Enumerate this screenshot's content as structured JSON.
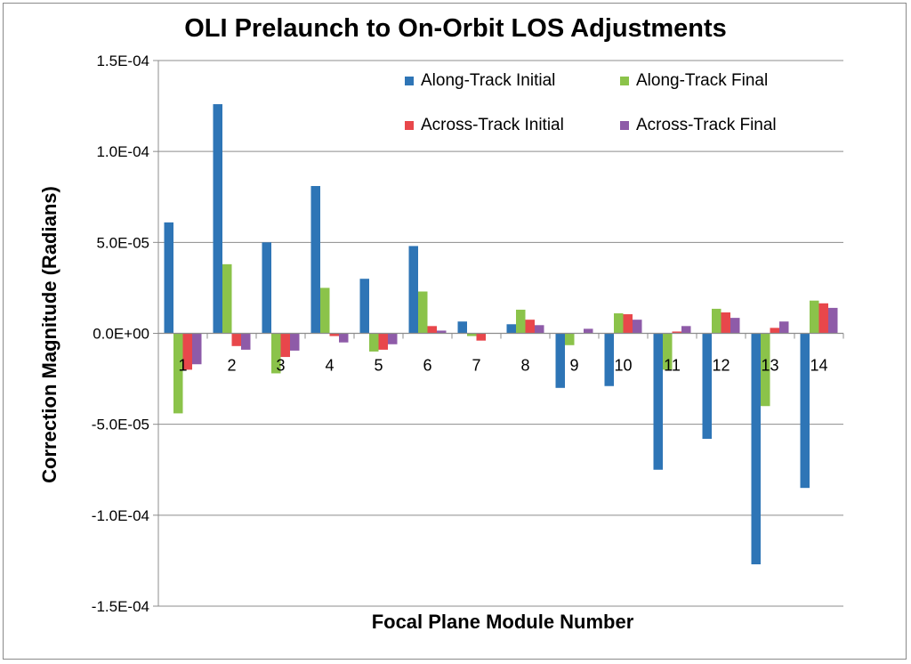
{
  "chart_data": {
    "type": "bar",
    "title": "OLI Prelaunch to On-Orbit LOS Adjustments",
    "xlabel": "Focal Plane Module Number",
    "ylabel": "Correction Magnitude (Radians)",
    "ylim": [
      -0.00015,
      0.00015
    ],
    "yticks": [
      0.00015,
      0.0001,
      5e-05,
      0,
      -5e-05,
      -0.0001,
      -0.00015
    ],
    "ytick_labels": [
      "1.5E-04",
      "1.0E-04",
      "5.0E-05",
      "0.0E+00",
      "-5.0E-05",
      "-1.0E-04",
      "-1.5E-04"
    ],
    "grid": true,
    "legend_position": "top-right",
    "categories": [
      "1",
      "2",
      "3",
      "4",
      "5",
      "6",
      "7",
      "8",
      "9",
      "10",
      "11",
      "12",
      "13",
      "14"
    ],
    "series": [
      {
        "name": "Along-Track Initial",
        "color": "#2e75b6",
        "values": [
          6.1e-05,
          0.000126,
          5e-05,
          8.1e-05,
          3e-05,
          4.8e-05,
          6.5e-06,
          5e-06,
          -3e-05,
          -2.9e-05,
          -7.5e-05,
          -5.8e-05,
          -0.000127,
          -8.5e-05
        ]
      },
      {
        "name": "Along-Track Final",
        "color": "#8bc34a",
        "values": [
          -4.4e-05,
          3.8e-05,
          -2.2e-05,
          2.5e-05,
          -1e-05,
          2.3e-05,
          -1.5e-06,
          1.3e-05,
          -6.5e-06,
          1.1e-05,
          -2e-05,
          1.35e-05,
          -4e-05,
          1.8e-05
        ]
      },
      {
        "name": "Across-Track Initial",
        "color": "#e8474b",
        "values": [
          -2e-05,
          -7e-06,
          -1.3e-05,
          -1.5e-06,
          -9e-06,
          4e-06,
          -4e-06,
          7.5e-06,
          0,
          1.05e-05,
          1e-06,
          1.15e-05,
          3e-06,
          1.65e-05
        ]
      },
      {
        "name": "Across-Track Final",
        "color": "#8e5ba8",
        "values": [
          -1.7e-05,
          -9e-06,
          -9.5e-06,
          -5e-06,
          -6e-06,
          1.5e-06,
          0,
          4.5e-06,
          2.5e-06,
          7.5e-06,
          4e-06,
          8.5e-06,
          6.5e-06,
          1.4e-05
        ]
      }
    ]
  }
}
